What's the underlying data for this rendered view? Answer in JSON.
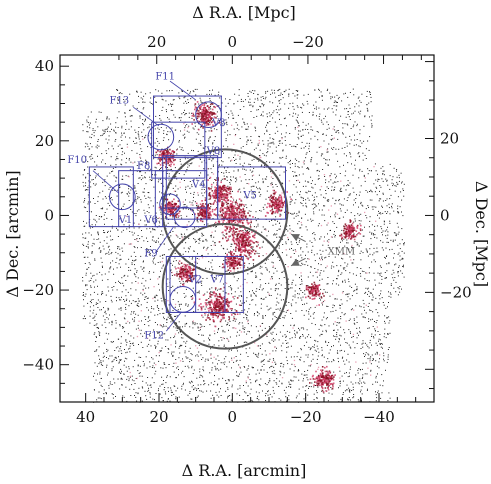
{
  "chart_data": {
    "type": "scatter",
    "title": "",
    "xlabel_bottom": "Δ R.A. [arcmin]",
    "xlabel_top": "Δ R.A. [Mpc]",
    "ylabel_left": "Δ Dec. [arcmin]",
    "ylabel_right": "Δ Dec. [Mpc]",
    "xlim_arcmin": [
      47,
      -55
    ],
    "ylim_arcmin": [
      -50,
      43
    ],
    "mpc_per_arcmin": 0.97,
    "x_ticks_bottom": [
      {
        "value": 40,
        "label": "40"
      },
      {
        "value": 20,
        "label": "20"
      },
      {
        "value": 0,
        "label": "0"
      },
      {
        "value": -20,
        "label": "−20"
      },
      {
        "value": -40,
        "label": "−40"
      }
    ],
    "x_ticks_top": [
      {
        "value": 20,
        "label": "20"
      },
      {
        "value": 0,
        "label": "0"
      },
      {
        "value": -20,
        "label": "−20"
      }
    ],
    "y_ticks_left": [
      {
        "value": 40,
        "label": "40"
      },
      {
        "value": 20,
        "label": "20"
      },
      {
        "value": 0,
        "label": "0"
      },
      {
        "value": -20,
        "label": "−20"
      },
      {
        "value": -40,
        "label": "−40"
      }
    ],
    "y_ticks_right": [
      {
        "value": 20,
        "label": "20"
      },
      {
        "value": 0,
        "label": "0"
      },
      {
        "value": -20,
        "label": "−20"
      }
    ],
    "galaxy_density_peaks": [
      {
        "x": 0,
        "y": 0,
        "weight": 1.0
      },
      {
        "x": -3,
        "y": -7,
        "weight": 0.8
      },
      {
        "x": 3.5,
        "y": 6,
        "weight": 0.6
      },
      {
        "x": 4,
        "y": -24,
        "weight": 0.9
      },
      {
        "x": 7.5,
        "y": 27,
        "weight": 0.6
      },
      {
        "x": -12,
        "y": 3,
        "weight": 0.4
      },
      {
        "x": 13,
        "y": -15,
        "weight": 0.35
      },
      {
        "x": -25,
        "y": -44,
        "weight": 0.5
      },
      {
        "x": 8,
        "y": 1,
        "weight": 0.35
      },
      {
        "x": 18,
        "y": 16,
        "weight": 0.3
      },
      {
        "x": 0,
        "y": -12,
        "weight": 0.3
      },
      {
        "x": -32,
        "y": -4,
        "weight": 0.25
      },
      {
        "x": -22,
        "y": -20,
        "weight": 0.2
      },
      {
        "x": 17,
        "y": 2,
        "weight": 0.3
      }
    ],
    "fields": [
      {
        "name": "F11",
        "x0": 21.5,
        "y0": 15.5,
        "x1": 3,
        "y1": 32
      },
      {
        "name": "F13",
        "x0": 22,
        "y0": 10,
        "x1": 7.5,
        "y1": 25
      },
      {
        "name": "F8",
        "x0": 19,
        "y0": 2,
        "x1": 7,
        "y1": 16
      },
      {
        "name": "V4",
        "x0": 18,
        "y0": -1,
        "x1": 4,
        "y1": 16
      },
      {
        "name": "V5",
        "x0": 4,
        "y0": -1,
        "x1": -14.5,
        "y1": 13
      },
      {
        "name": "F10",
        "x0": 39,
        "y0": -3,
        "x1": 27,
        "y1": 13
      },
      {
        "name": "V1",
        "x0": 31,
        "y0": -3,
        "x1": 19,
        "y1": 12
      },
      {
        "name": "V6",
        "x0": 21,
        "y0": -3,
        "x1": 7,
        "y1": 12
      },
      {
        "name": "F12",
        "x0": 18,
        "y0": -26,
        "x1": 2,
        "y1": -11
      },
      {
        "name": "V2",
        "x0": 17,
        "y0": -26,
        "x1": 2,
        "y1": -11
      },
      {
        "name": "V7",
        "x0": 10,
        "y0": -26,
        "x1": -3,
        "y1": -11
      }
    ],
    "field_labels": [
      {
        "text": "F11",
        "x": 21,
        "y": 36.5
      },
      {
        "text": "F13",
        "x": 33.5,
        "y": 30
      },
      {
        "text": "V3",
        "x": 5.5,
        "y": 24
      },
      {
        "text": "V8",
        "x": 7,
        "y": 16.5
      },
      {
        "text": "F8",
        "x": 26,
        "y": 12.5
      },
      {
        "text": "F10",
        "x": 45,
        "y": 14
      },
      {
        "text": "V4",
        "x": 11,
        "y": 7.5
      },
      {
        "text": "V5",
        "x": -3,
        "y": 4.5
      },
      {
        "text": "V1",
        "x": 31,
        "y": -2
      },
      {
        "text": "V6",
        "x": 24,
        "y": -2
      },
      {
        "text": "F9",
        "x": 24,
        "y": -11
      },
      {
        "text": "V2",
        "x": 12,
        "y": -18
      },
      {
        "text": "V7",
        "x": 6,
        "y": -18
      },
      {
        "text": "F12",
        "x": 24,
        "y": -33
      }
    ],
    "small_circles": [
      {
        "x": 6.5,
        "y": 27,
        "r": 3.5
      },
      {
        "x": 19.5,
        "y": 21,
        "r": 3.5
      },
      {
        "x": 30,
        "y": 5,
        "r": 3.5
      },
      {
        "x": 17,
        "y": 3,
        "r": 2.8
      },
      {
        "x": 13,
        "y": -0.5,
        "r": 2.8
      },
      {
        "x": 13.5,
        "y": -22.5,
        "r": 3.5
      }
    ],
    "xmm_circles": [
      {
        "x": 2,
        "y": 1,
        "r": 17
      },
      {
        "x": 2,
        "y": -19,
        "r": 17
      }
    ],
    "xmm_label": "XMM",
    "xmm_arrows": [
      {
        "from": [
          -20,
          -7
        ],
        "to": [
          -16,
          -5
        ]
      },
      {
        "from": [
          -20,
          -11.5
        ],
        "to": [
          -16,
          -13.5
        ]
      }
    ]
  }
}
